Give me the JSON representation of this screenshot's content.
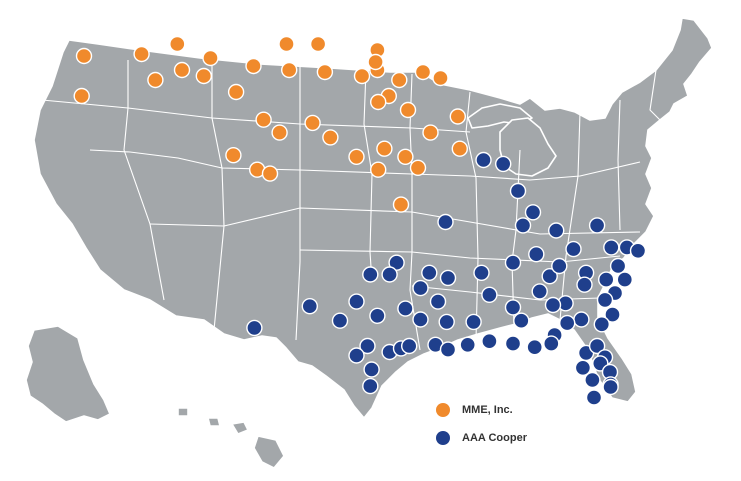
{
  "colors": {
    "land": "#a3a7aa",
    "border": "#ffffff",
    "mme": "#f08a2c",
    "aaa": "#1f3f8c"
  },
  "legend": {
    "items": [
      {
        "label": "MME, Inc.",
        "color": "#f08a2c",
        "icon": "orange-circle-icon"
      },
      {
        "label": "AAA Cooper",
        "color": "#1f3f8c",
        "icon": "navy-circle-icon"
      }
    ]
  },
  "terminals": {
    "mme": [
      [
        -122.4,
        47.6
      ],
      [
        -117.4,
        47.7
      ],
      [
        -122.6,
        45.6
      ],
      [
        -114.3,
        48.2
      ],
      [
        -116.2,
        46.4
      ],
      [
        -113.9,
        46.9
      ],
      [
        -111.3,
        47.5
      ],
      [
        -108.5,
        45.8
      ],
      [
        -112.0,
        46.6
      ],
      [
        -106.6,
        47.1
      ],
      [
        -103.6,
        48.2
      ],
      [
        -101.3,
        48.2
      ],
      [
        -103.4,
        46.9
      ],
      [
        -100.8,
        46.8
      ],
      [
        -96.8,
        46.9
      ],
      [
        -96.8,
        47.9
      ],
      [
        -97.0,
        47.3
      ],
      [
        -98.1,
        46.6
      ],
      [
        -95.5,
        45.6
      ],
      [
        -96.7,
        45.3
      ],
      [
        -94.3,
        46.4
      ],
      [
        -93.3,
        44.9
      ],
      [
        -92.1,
        46.8
      ],
      [
        -90.7,
        46.5
      ],
      [
        -89.6,
        44.5
      ],
      [
        -105.5,
        44.3
      ],
      [
        -104.1,
        43.5
      ],
      [
        -101.7,
        44.1
      ],
      [
        -100.4,
        43.2
      ],
      [
        -98.5,
        42.0
      ],
      [
        -106.2,
        41.3
      ],
      [
        -104.8,
        41.1
      ],
      [
        -108.8,
        42.1
      ],
      [
        -96.7,
        41.3
      ],
      [
        -96.0,
        42.5
      ],
      [
        -93.6,
        42.0
      ],
      [
        -92.5,
        41.4
      ],
      [
        -91.5,
        43.5
      ],
      [
        -89.5,
        42.5
      ],
      [
        -94.1,
        39.5
      ]
    ],
    "aaa": [
      [
        -88.3,
        41.8
      ],
      [
        -87.3,
        41.6
      ],
      [
        -86.5,
        40.2
      ],
      [
        -90.3,
        38.6
      ],
      [
        -86.2,
        38.4
      ],
      [
        -85.6,
        39.1
      ],
      [
        -84.2,
        38.1
      ],
      [
        -83.1,
        37.0
      ],
      [
        -81.6,
        38.4
      ],
      [
        -80.1,
        37.1
      ],
      [
        -77.7,
        37.1
      ],
      [
        -76.1,
        36.9
      ],
      [
        -79.0,
        36.0
      ],
      [
        -78.0,
        35.2
      ],
      [
        -80.9,
        35.2
      ],
      [
        -79.5,
        34.4
      ],
      [
        -82.3,
        35.6
      ],
      [
        -85.4,
        36.7
      ],
      [
        -86.8,
        36.2
      ],
      [
        -88.4,
        35.6
      ],
      [
        -90.1,
        35.3
      ],
      [
        -84.6,
        35.4
      ],
      [
        -84.0,
        36.0
      ],
      [
        -82.4,
        34.9
      ],
      [
        -81.1,
        34.0
      ],
      [
        -79.9,
        32.9
      ],
      [
        -81.3,
        32.1
      ],
      [
        -82.6,
        32.5
      ],
      [
        -83.6,
        33.8
      ],
      [
        -84.4,
        33.7
      ],
      [
        -85.2,
        34.5
      ],
      [
        -83.5,
        32.2
      ],
      [
        -84.3,
        31.2
      ],
      [
        -86.3,
        32.4
      ],
      [
        -86.8,
        33.5
      ],
      [
        -88.0,
        34.3
      ],
      [
        -88.8,
        32.3
      ],
      [
        -90.2,
        32.3
      ],
      [
        -90.9,
        33.9
      ],
      [
        -91.6,
        35.6
      ],
      [
        -92.3,
        34.7
      ],
      [
        -93.6,
        33.4
      ],
      [
        -92.3,
        32.5
      ],
      [
        -94.6,
        36.2
      ],
      [
        -95.4,
        35.5
      ],
      [
        -97.5,
        35.5
      ],
      [
        -98.5,
        33.9
      ],
      [
        -99.7,
        32.4
      ],
      [
        -96.8,
        32.8
      ],
      [
        -101.9,
        33.6
      ],
      [
        -106.5,
        31.8
      ],
      [
        -97.7,
        30.3
      ],
      [
        -98.5,
        29.4
      ],
      [
        -95.4,
        29.8
      ],
      [
        -94.1,
        30.1
      ],
      [
        -93.2,
        30.3
      ],
      [
        -91.1,
        30.4
      ],
      [
        -90.1,
        30.0
      ],
      [
        -89.1,
        30.4
      ],
      [
        -88.0,
        30.7
      ],
      [
        -86.8,
        30.5
      ],
      [
        -85.5,
        30.2
      ],
      [
        -84.5,
        30.5
      ],
      [
        -97.4,
        27.8
      ],
      [
        -97.5,
        25.9
      ],
      [
        -82.3,
        29.7
      ],
      [
        -81.6,
        30.3
      ],
      [
        -81.1,
        29.2
      ],
      [
        -81.4,
        28.5
      ],
      [
        -82.5,
        28.0
      ],
      [
        -80.3,
        27.5
      ],
      [
        -81.9,
        26.6
      ],
      [
        -80.2,
        26.1
      ],
      [
        -80.2,
        25.8
      ],
      [
        -81.8,
        24.6
      ]
    ]
  }
}
